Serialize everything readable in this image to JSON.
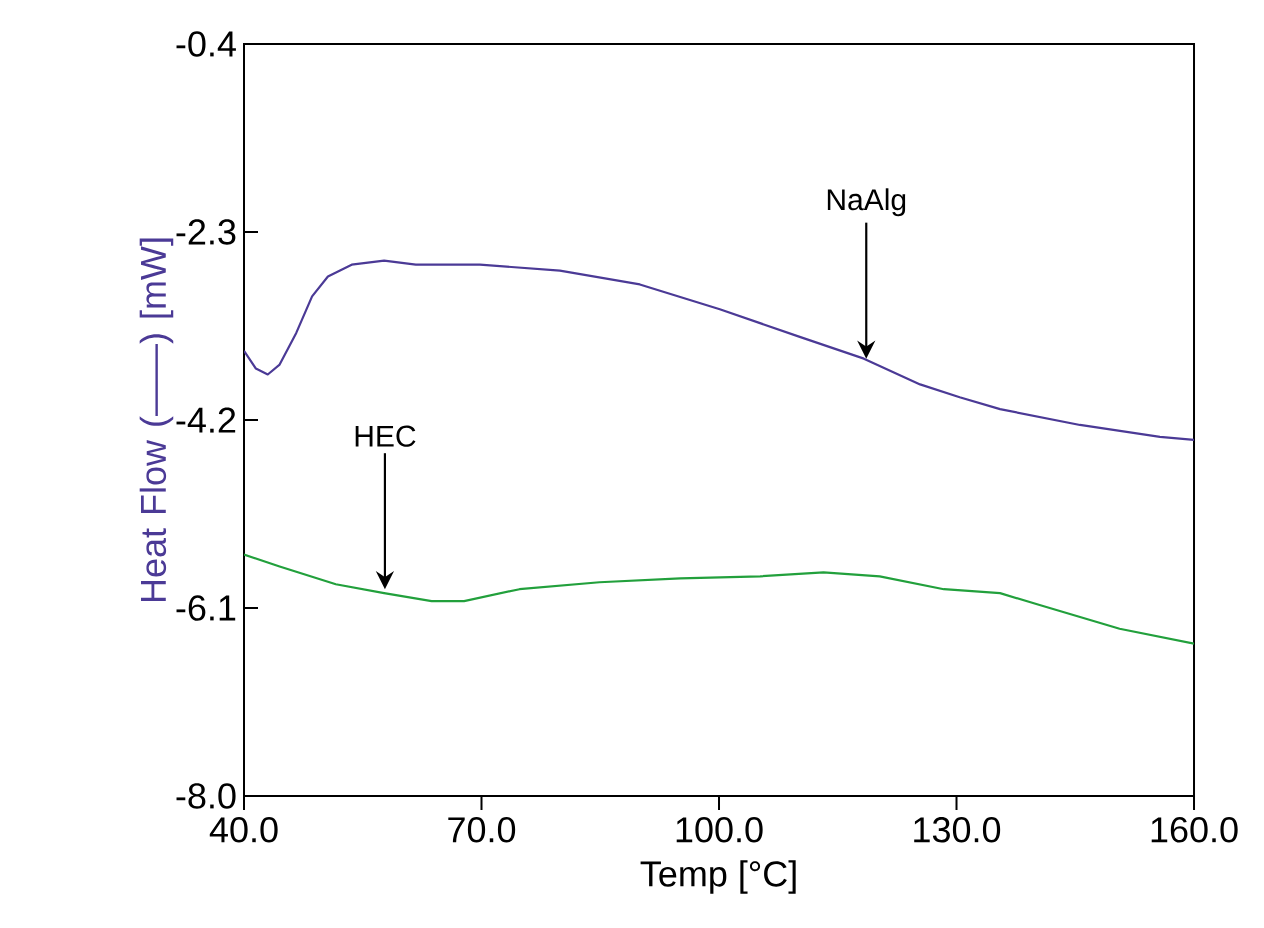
{
  "chart_data": {
    "type": "line",
    "xlabel": "Temp [°C]",
    "ylabel": "Heat Flow (——) [mW]",
    "xlim": [
      40,
      160
    ],
    "ylim": [
      -8.0,
      -0.4
    ],
    "xticks": [
      {
        "value": 40,
        "label": "40.0"
      },
      {
        "value": 70,
        "label": "70.0"
      },
      {
        "value": 100,
        "label": "100.0"
      },
      {
        "value": 130,
        "label": "130.0"
      },
      {
        "value": 160,
        "label": "160.0"
      }
    ],
    "yticks": [
      {
        "value": -8.0,
        "label": "-8.0"
      },
      -6.1,
      -4.2,
      -2.3,
      -0.4
    ],
    "marker": "none",
    "line_style": "solid",
    "annotations": [
      {
        "text": "NaAlg",
        "x": 118.6,
        "y": -3.58
      },
      {
        "text": "HEC",
        "x": 57.8,
        "y": -5.91
      }
    ],
    "series": [
      {
        "color": "#4b3a96",
        "x": [
          40,
          41.5,
          43.0,
          44.5,
          46.6,
          48.6,
          50.6,
          53.6,
          57.7,
          61.7,
          69.8,
          79.9,
          90.0,
          100.1,
          110.2,
          118.3,
          125.4,
          130.4,
          135.5,
          145.6,
          155.7,
          160
        ],
        "values": [
          -3.5,
          -3.68,
          -3.74,
          -3.64,
          -3.32,
          -2.95,
          -2.75,
          -2.63,
          -2.59,
          -2.63,
          -2.63,
          -2.69,
          -2.83,
          -3.08,
          -3.36,
          -3.58,
          -3.84,
          -3.97,
          -4.09,
          -4.25,
          -4.37,
          -4.4
        ]
      },
      {
        "color": "#22a03c",
        "x": [
          40,
          44.5,
          51.6,
          57.7,
          63.7,
          67.8,
          74.8,
          84.9,
          95.1,
          105.2,
          113.2,
          120.3,
          128.4,
          135.5,
          140.5,
          150.6,
          160
        ],
        "values": [
          -5.56,
          -5.68,
          -5.86,
          -5.95,
          -6.03,
          -6.03,
          -5.91,
          -5.84,
          -5.8,
          -5.78,
          -5.74,
          -5.78,
          -5.91,
          -5.95,
          -6.07,
          -6.31,
          -6.46
        ]
      }
    ]
  }
}
